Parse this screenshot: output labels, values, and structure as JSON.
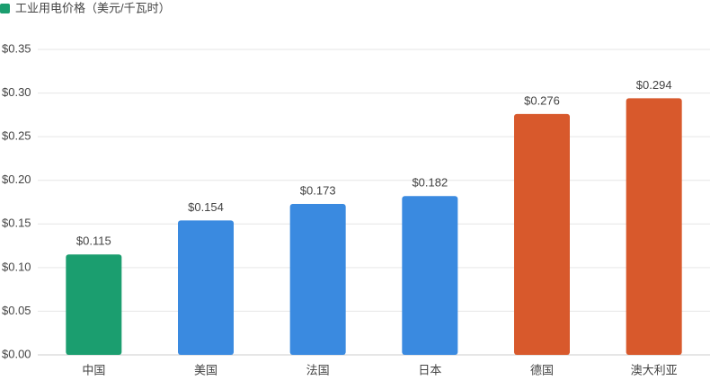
{
  "chart_data": {
    "type": "bar",
    "legend": {
      "name": "工业用电价格（美元/千瓦时）",
      "color": "#1b9e6f",
      "position": "top-left"
    },
    "categories": [
      "中国",
      "美国",
      "法国",
      "日本",
      "德国",
      "澳大利亚"
    ],
    "values": [
      0.115,
      0.154,
      0.173,
      0.182,
      0.276,
      0.294
    ],
    "value_labels": [
      "$0.115",
      "$0.154",
      "$0.173",
      "$0.182",
      "$0.276",
      "$0.294"
    ],
    "colors": [
      "#1b9e6f",
      "#3a8ae0",
      "#3a8ae0",
      "#3a8ae0",
      "#d8592c",
      "#d8592c"
    ],
    "ylim": [
      0,
      0.35
    ],
    "yticks": [
      {
        "value": 0,
        "label": "$0.00"
      },
      {
        "value": 0.05,
        "label": "$0.05"
      },
      {
        "value": 0.1,
        "label": "$0.10"
      },
      {
        "value": 0.15,
        "label": "$0.15"
      },
      {
        "value": 0.2,
        "label": "$0.20"
      },
      {
        "value": 0.25,
        "label": "$0.25"
      },
      {
        "value": 0.3,
        "label": "$0.30"
      },
      {
        "value": 0.35,
        "label": "$0.35"
      }
    ],
    "grid": true
  }
}
